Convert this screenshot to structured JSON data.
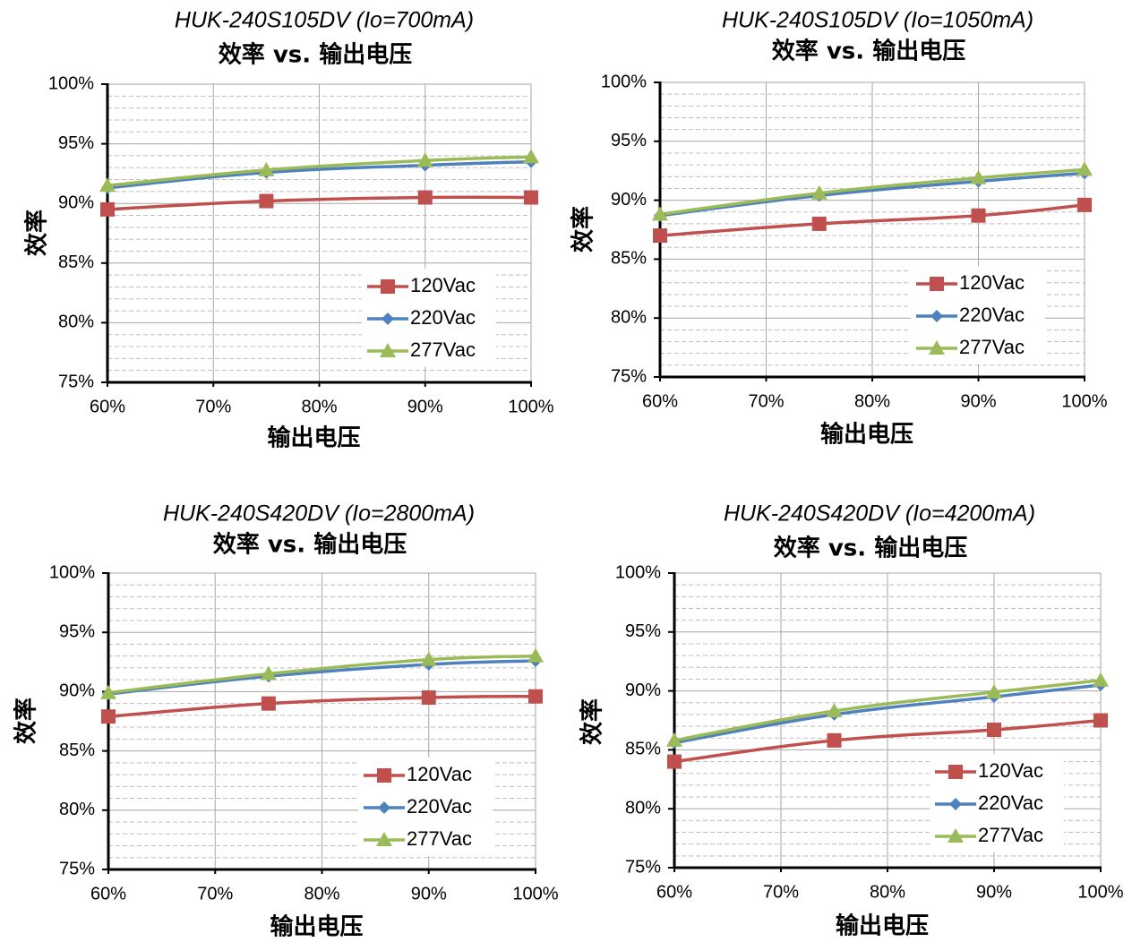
{
  "chart_data": [
    {
      "type": "line",
      "title": "HUK-240S105DV (Io=700mA)",
      "subtitle": "效率 vs. 输出电压",
      "xlabel": "输出电压",
      "ylabel": "效率",
      "x": [
        60,
        75,
        90,
        100
      ],
      "xticks": [
        "60%",
        "70%",
        "80%",
        "90%",
        "100%"
      ],
      "yticks": [
        "75%",
        "80%",
        "85%",
        "90%",
        "95%",
        "100%"
      ],
      "xlim": [
        60,
        100
      ],
      "ylim": [
        75,
        100
      ],
      "legend_position": "bottom-right",
      "series": [
        {
          "name": "120Vac",
          "color": "#c0504d",
          "marker": "square",
          "values": [
            89.5,
            90.2,
            90.5,
            90.5
          ]
        },
        {
          "name": "220Vac",
          "color": "#4f81bd",
          "marker": "diamond",
          "values": [
            91.3,
            92.6,
            93.2,
            93.5
          ]
        },
        {
          "name": "277Vac",
          "color": "#9bbb59",
          "marker": "triangle",
          "values": [
            91.5,
            92.8,
            93.6,
            93.9
          ]
        }
      ]
    },
    {
      "type": "line",
      "title": "HUK-240S105DV (Io=1050mA)",
      "subtitle": "效率 vs. 输出电压",
      "xlabel": "输出电压",
      "ylabel": "效率",
      "x": [
        60,
        75,
        90,
        100
      ],
      "xticks": [
        "60%",
        "70%",
        "80%",
        "90%",
        "100%"
      ],
      "yticks": [
        "75%",
        "80%",
        "85%",
        "90%",
        "95%",
        "100%"
      ],
      "xlim": [
        60,
        100
      ],
      "ylim": [
        75,
        100
      ],
      "legend_position": "bottom-right",
      "series": [
        {
          "name": "120Vac",
          "color": "#c0504d",
          "marker": "square",
          "values": [
            87.0,
            88.0,
            88.7,
            89.6
          ]
        },
        {
          "name": "220Vac",
          "color": "#4f81bd",
          "marker": "diamond",
          "values": [
            88.7,
            90.4,
            91.6,
            92.3
          ]
        },
        {
          "name": "277Vac",
          "color": "#9bbb59",
          "marker": "triangle",
          "values": [
            88.8,
            90.6,
            91.9,
            92.6
          ]
        }
      ]
    },
    {
      "type": "line",
      "title": "HUK-240S420DV (Io=2800mA)",
      "subtitle": "效率 vs. 输出电压",
      "xlabel": "输出电压",
      "ylabel": "效率",
      "x": [
        60,
        75,
        90,
        100
      ],
      "xticks": [
        "60%",
        "70%",
        "80%",
        "90%",
        "100%"
      ],
      "yticks": [
        "75%",
        "80%",
        "85%",
        "90%",
        "95%",
        "100%"
      ],
      "xlim": [
        60,
        100
      ],
      "ylim": [
        75,
        100
      ],
      "legend_position": "bottom-right",
      "series": [
        {
          "name": "120Vac",
          "color": "#c0504d",
          "marker": "square",
          "values": [
            87.9,
            89.0,
            89.5,
            89.6
          ]
        },
        {
          "name": "220Vac",
          "color": "#4f81bd",
          "marker": "diamond",
          "values": [
            89.8,
            91.3,
            92.3,
            92.6
          ]
        },
        {
          "name": "277Vac",
          "color": "#9bbb59",
          "marker": "triangle",
          "values": [
            89.9,
            91.5,
            92.7,
            93.0
          ]
        }
      ]
    },
    {
      "type": "line",
      "title": "HUK-240S420DV (Io=4200mA)",
      "subtitle": "效率 vs. 输出电压",
      "xlabel": "输出电压",
      "ylabel": "效率",
      "x": [
        60,
        75,
        90,
        100
      ],
      "xticks": [
        "60%",
        "70%",
        "80%",
        "90%",
        "100%"
      ],
      "yticks": [
        "75%",
        "80%",
        "85%",
        "90%",
        "95%",
        "100%"
      ],
      "xlim": [
        60,
        100
      ],
      "ylim": [
        75,
        100
      ],
      "legend_position": "bottom-right",
      "series": [
        {
          "name": "120Vac",
          "color": "#c0504d",
          "marker": "square",
          "values": [
            84.0,
            85.8,
            86.7,
            87.5
          ]
        },
        {
          "name": "220Vac",
          "color": "#4f81bd",
          "marker": "diamond",
          "values": [
            85.6,
            88.0,
            89.5,
            90.5
          ]
        },
        {
          "name": "277Vac",
          "color": "#9bbb59",
          "marker": "triangle",
          "values": [
            85.8,
            88.3,
            89.9,
            90.9
          ]
        }
      ]
    }
  ]
}
